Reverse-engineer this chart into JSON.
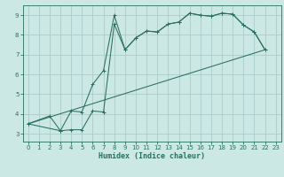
{
  "xlabel": "Humidex (Indice chaleur)",
  "bg_color": "#cce8e4",
  "grid_color": "#aaccca",
  "line_color": "#2a6e60",
  "xlim": [
    -0.5,
    23.5
  ],
  "ylim": [
    2.6,
    9.5
  ],
  "xticks": [
    0,
    1,
    2,
    3,
    4,
    5,
    6,
    7,
    8,
    9,
    10,
    11,
    12,
    13,
    14,
    15,
    16,
    17,
    18,
    19,
    20,
    21,
    22,
    23
  ],
  "yticks": [
    3,
    4,
    5,
    6,
    7,
    8,
    9
  ],
  "curve1_x": [
    0,
    2,
    3,
    4,
    5,
    6,
    7,
    8,
    9,
    10,
    11,
    12,
    13,
    14,
    15,
    16,
    17,
    18,
    19,
    20,
    21,
    22
  ],
  "curve1_y": [
    3.5,
    3.9,
    3.15,
    4.15,
    4.1,
    5.5,
    6.2,
    9.0,
    7.25,
    7.85,
    8.2,
    8.15,
    8.55,
    8.65,
    9.1,
    9.0,
    8.95,
    9.1,
    9.05,
    8.5,
    8.15,
    7.25
  ],
  "curve2_x": [
    0,
    3,
    4,
    5,
    6,
    7,
    8,
    9,
    10,
    11,
    12,
    13,
    14,
    15,
    16,
    17,
    18,
    19,
    20,
    21,
    22
  ],
  "curve2_y": [
    3.5,
    3.15,
    3.2,
    3.2,
    4.15,
    4.1,
    8.55,
    7.25,
    7.85,
    8.2,
    8.15,
    8.55,
    8.65,
    9.1,
    9.0,
    8.95,
    9.1,
    9.05,
    8.5,
    8.15,
    7.25
  ],
  "curve3_x": [
    0,
    22
  ],
  "curve3_y": [
    3.5,
    7.25
  ],
  "marker_size": 2.2,
  "lw": 0.75
}
